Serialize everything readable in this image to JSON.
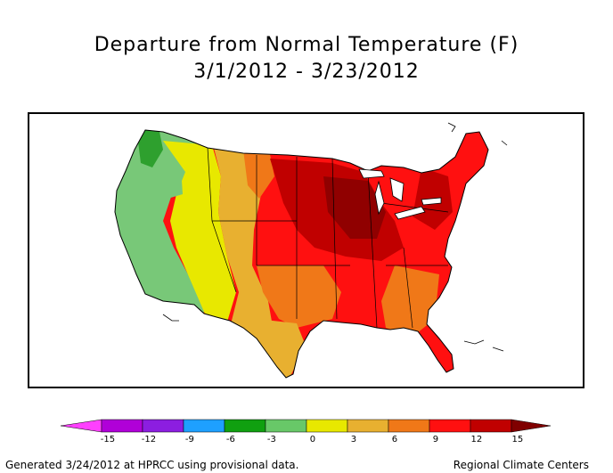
{
  "title": {
    "line1": "Departure from Normal Temperature (F)",
    "line2": "3/1/2012 - 3/23/2012"
  },
  "legend": {
    "ticks": [
      "-15",
      "-12",
      "-9",
      "-6",
      "-3",
      "0",
      "3",
      "6",
      "9",
      "12",
      "15"
    ],
    "colors": {
      "low_arrow": "#ff40ff",
      "bins": [
        "#b000d8",
        "#8c1ee0",
        "#1ea0ff",
        "#10a010",
        "#68c868",
        "#e8e800",
        "#e8b030",
        "#f07818",
        "#ff1010",
        "#c00000"
      ],
      "high_arrow": "#800000"
    }
  },
  "map": {
    "colors": {
      "green_light": "#78c878",
      "green_dark": "#2ea02e",
      "yellow": "#e8e800",
      "gold": "#e8b030",
      "orange": "#f07818",
      "red": "#ff1010",
      "dark_red": "#c00000",
      "maroon": "#900000"
    }
  },
  "footer": {
    "left": "Generated 3/24/2012 at HPRCC using provisional data.",
    "right": "Regional Climate Centers"
  }
}
